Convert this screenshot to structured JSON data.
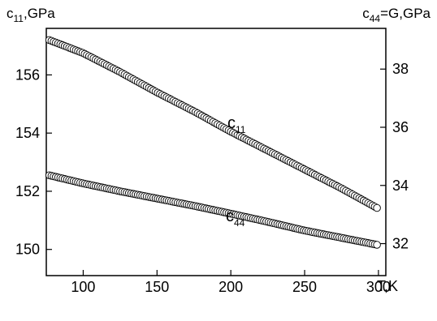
{
  "chart_data": {
    "type": "scatter",
    "x_axis": {
      "label": "T,K",
      "range": [
        75,
        305
      ],
      "ticks": [
        100,
        150,
        200,
        250,
        300
      ]
    },
    "y_left": {
      "label_main": "c",
      "label_sub": "11",
      "label_rest": ",GPa",
      "range": [
        149.1,
        157.6
      ],
      "ticks": [
        150,
        152,
        154,
        156
      ]
    },
    "y_right": {
      "label_main": "c",
      "label_sub": "44",
      "label_rest": "=G,GPa",
      "range": [
        30.9,
        39.4
      ],
      "ticks": [
        32,
        34,
        36,
        38
      ]
    },
    "series": [
      {
        "label_main": "c",
        "label_sub": "11",
        "axis": "left",
        "x_start": 77,
        "x_end": 300,
        "step": 1.5,
        "x": [
          77,
          100,
          125,
          150,
          175,
          200,
          225,
          250,
          275,
          300
        ],
        "y": [
          157.2,
          156.75,
          156.1,
          155.4,
          154.75,
          154.05,
          153.4,
          152.75,
          152.1,
          151.4
        ]
      },
      {
        "label_main": "c",
        "label_sub": "44",
        "axis": "right",
        "x_start": 77,
        "x_end": 300,
        "step": 1.5,
        "x": [
          77,
          100,
          125,
          150,
          175,
          200,
          225,
          250,
          275,
          300
        ],
        "y": [
          34.35,
          34.07,
          33.8,
          33.55,
          33.3,
          33.03,
          32.75,
          32.45,
          32.2,
          31.95
        ]
      }
    ],
    "grid": false,
    "legend": "none"
  }
}
